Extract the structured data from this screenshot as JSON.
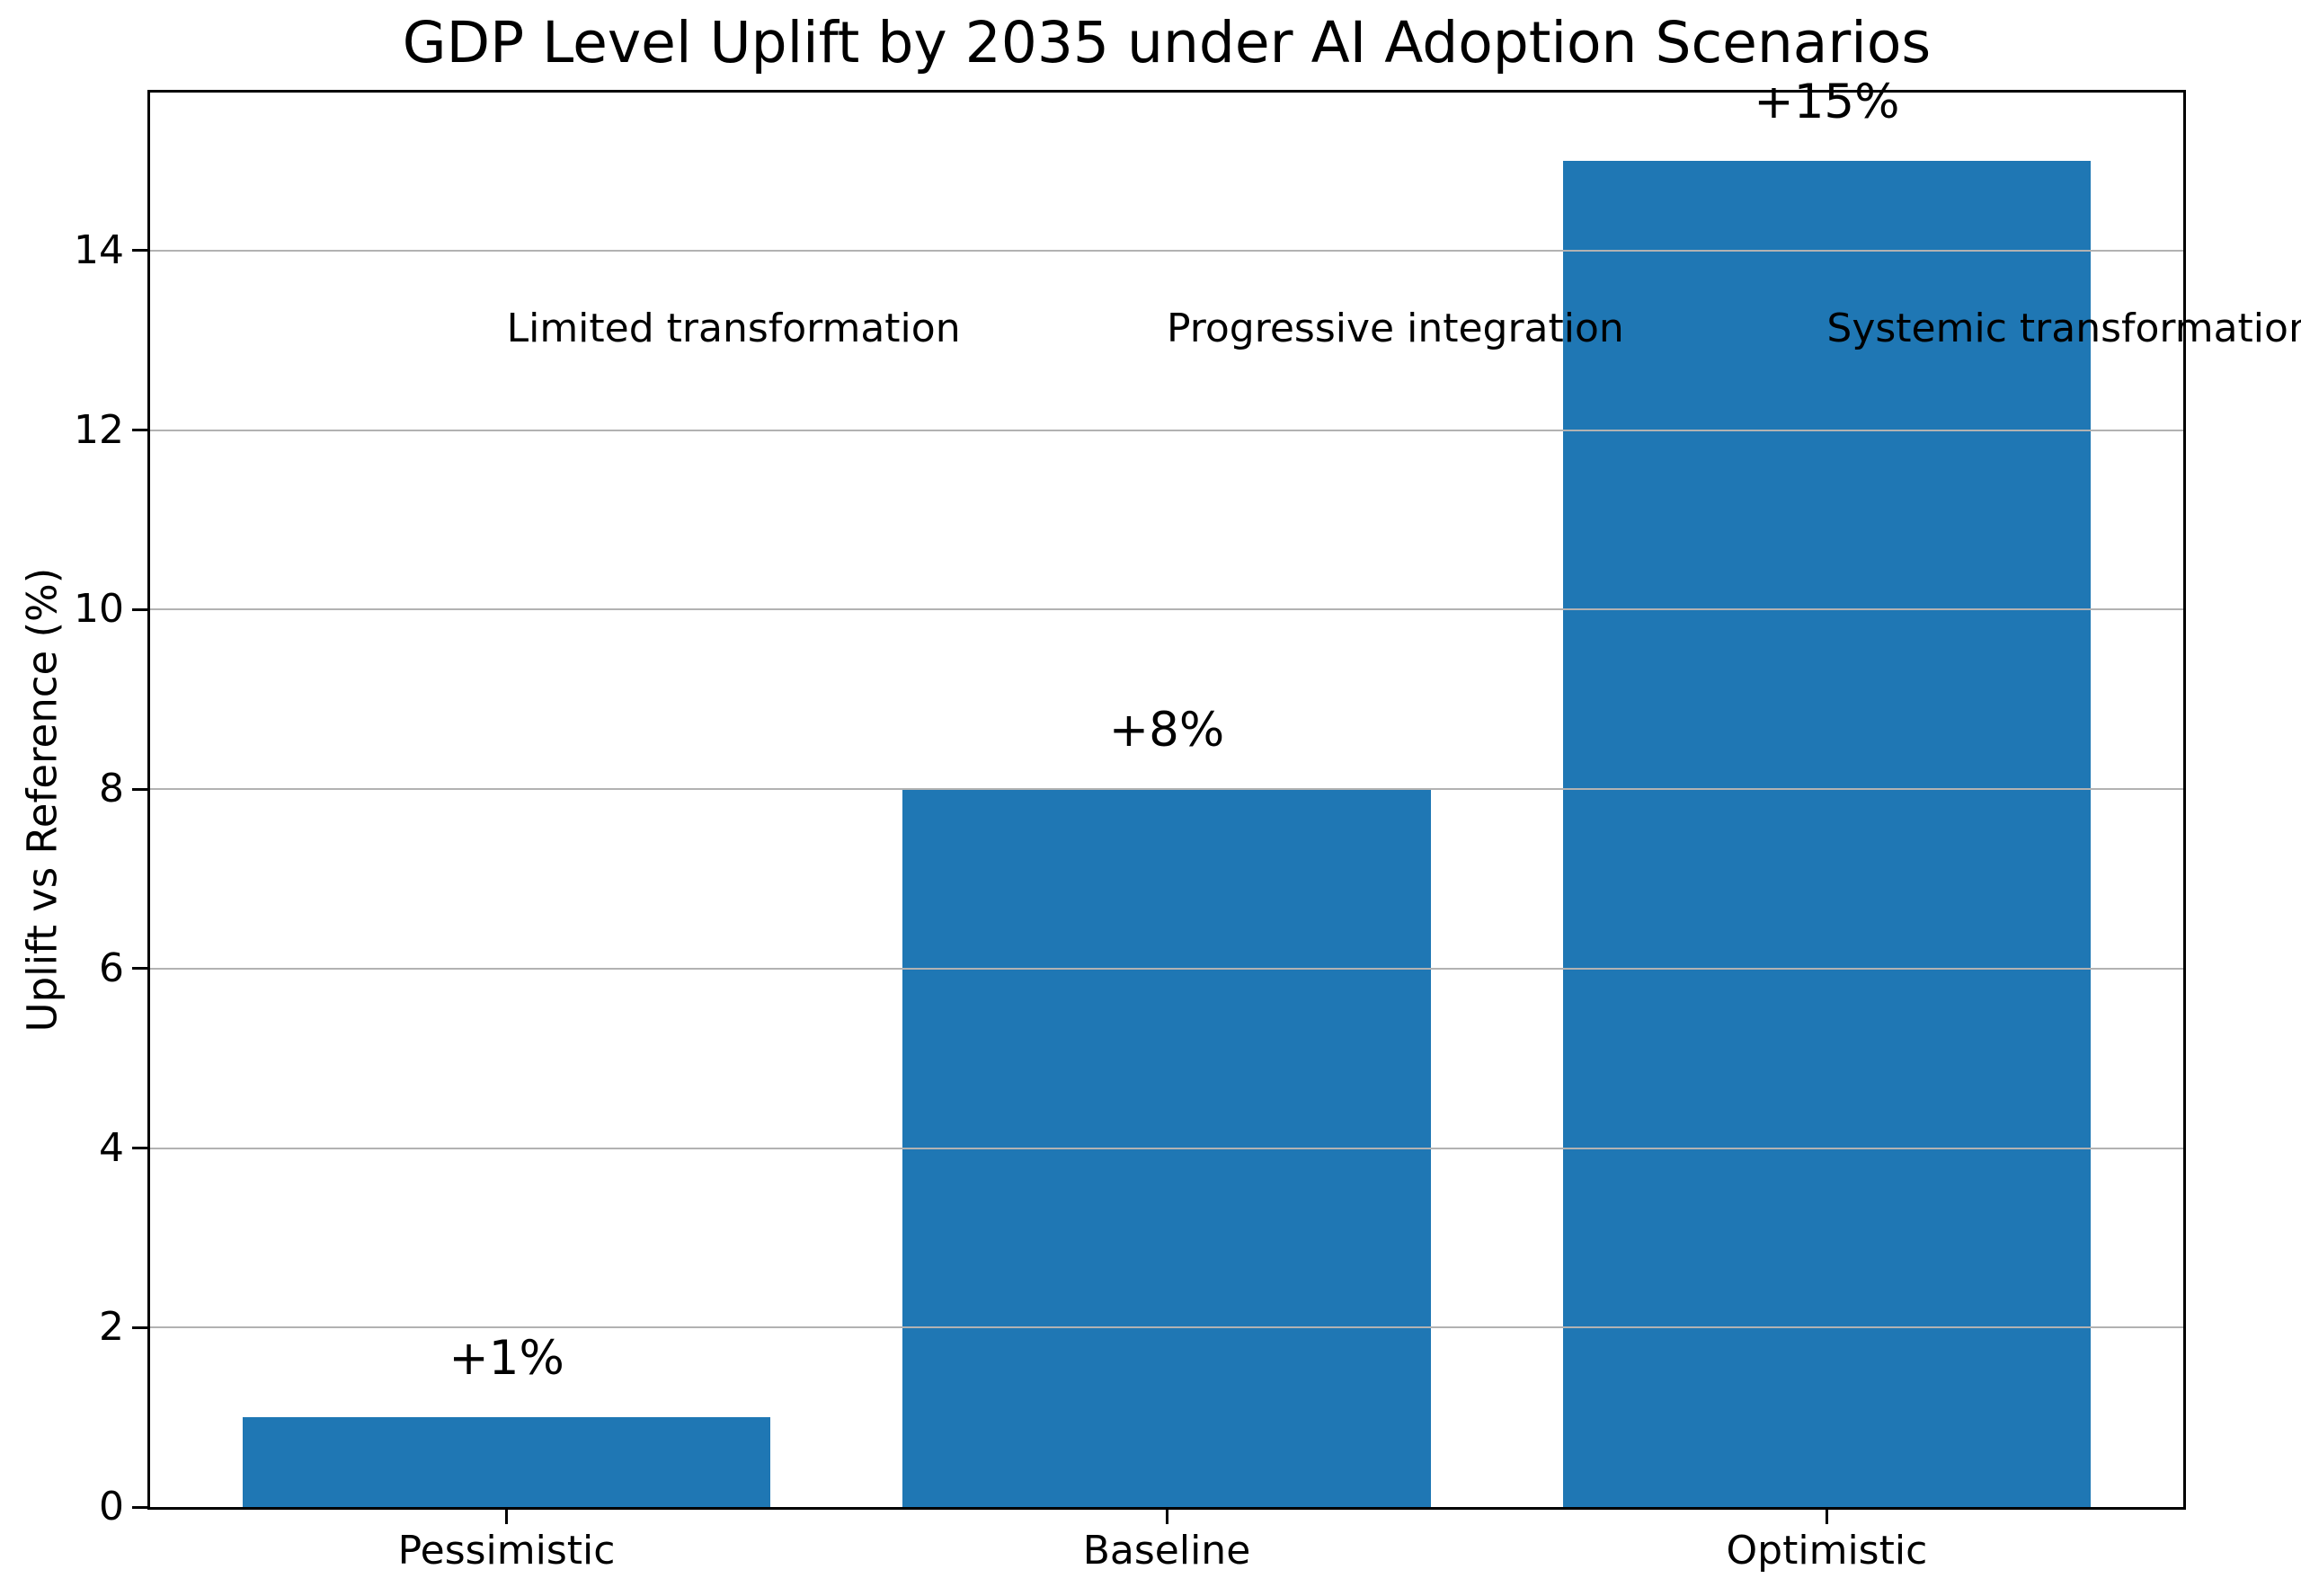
{
  "chart_data": {
    "type": "bar",
    "title": "GDP Level Uplift by 2035 under AI Adoption Scenarios",
    "ylabel": "Uplift vs Reference (%)",
    "xlabel": "",
    "categories": [
      "Pessimistic",
      "Baseline",
      "Optimistic"
    ],
    "values": [
      1,
      8,
      15
    ],
    "bar_value_labels": [
      "+1%",
      "+8%",
      "+15%"
    ],
    "scenario_annotations": [
      {
        "text": "Limited transformation",
        "x": 0,
        "y": 13
      },
      {
        "text": "Progressive integration",
        "x": 1,
        "y": 13
      },
      {
        "text": "Systemic transformation",
        "x": 2,
        "y": 13
      }
    ],
    "yticks": [
      0,
      2,
      4,
      6,
      8,
      10,
      12,
      14
    ],
    "ylim": [
      0,
      15.76
    ],
    "xlim": [
      -0.54,
      2.54
    ],
    "bar_width": 0.8,
    "grid": true,
    "legend_position": "none",
    "colors": {
      "bar": "#1f77b4",
      "grid": "#b2b2b2",
      "axis": "#000000",
      "text": "#000000",
      "background": "#ffffff"
    }
  }
}
